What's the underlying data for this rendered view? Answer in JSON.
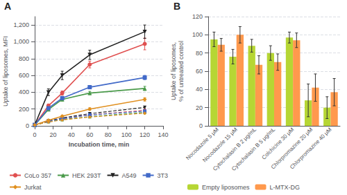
{
  "chart_data": [
    {
      "type": "line",
      "annotations": [
        "A"
      ],
      "x": [
        0,
        15,
        30,
        60,
        120
      ],
      "series": [
        {
          "name": "CoLo 357",
          "color": "#e05050",
          "marker": "circle",
          "line_style": "solid",
          "values": [
            10,
            240,
            390,
            730,
            975
          ],
          "errors": [
            5,
            20,
            25,
            40,
            70
          ]
        },
        {
          "name": "HEK 293T",
          "color": "#4a9a4a",
          "marker": "triangle-up",
          "line_style": "solid",
          "values": [
            10,
            195,
            315,
            390,
            445
          ],
          "errors": [
            5,
            15,
            20,
            20,
            25
          ]
        },
        {
          "name": "A549",
          "color": "#222222",
          "marker": "triangle-down",
          "line_style": "solid",
          "values": [
            10,
            400,
            600,
            845,
            1120
          ],
          "errors": [
            5,
            40,
            50,
            55,
            80
          ]
        },
        {
          "name": "3T3",
          "color": "#4169c8",
          "marker": "square",
          "line_style": "solid",
          "values": [
            10,
            210,
            330,
            460,
            575
          ],
          "errors": [
            5,
            15,
            20,
            20,
            25
          ]
        },
        {
          "name": "Jurkat",
          "color": "#e09020",
          "marker": "diamond",
          "line_style": "solid",
          "values": [
            10,
            65,
            115,
            200,
            315
          ],
          "errors": [
            5,
            10,
            10,
            15,
            20
          ]
        },
        {
          "name": "CoLo 357",
          "color": "#e05050",
          "marker": "circle",
          "line_style": "dashed",
          "values": [
            10,
            55,
            85,
            130,
            185
          ],
          "errors": [
            3,
            8,
            10,
            12,
            15
          ]
        },
        {
          "name": "HEK 293T",
          "color": "#4a9a4a",
          "marker": "triangle-up",
          "line_style": "dashed",
          "values": [
            10,
            50,
            75,
            110,
            160
          ],
          "errors": [
            3,
            7,
            8,
            10,
            12
          ]
        },
        {
          "name": "A549",
          "color": "#222222",
          "marker": "triangle-down",
          "line_style": "dashed",
          "values": [
            10,
            60,
            95,
            145,
            220
          ],
          "errors": [
            3,
            8,
            10,
            12,
            15
          ]
        },
        {
          "name": "3T3",
          "color": "#4169c8",
          "marker": "square",
          "line_style": "dashed",
          "values": [
            10,
            55,
            85,
            130,
            175
          ],
          "errors": [
            3,
            7,
            8,
            10,
            12
          ]
        },
        {
          "name": "Jurkat",
          "color": "#e09020",
          "marker": "diamond",
          "line_style": "dashed",
          "values": [
            10,
            45,
            70,
            105,
            150
          ],
          "errors": [
            3,
            6,
            7,
            9,
            11
          ]
        }
      ],
      "xlabel": "Incubation time, min",
      "ylabel": "Uptake of liposomes, MFI",
      "xlim": [
        0,
        140
      ],
      "xticks": [
        0,
        20,
        40,
        60,
        80,
        100,
        120,
        140
      ],
      "ylim": [
        0,
        1300
      ],
      "yticks": [
        0,
        200,
        400,
        600,
        800,
        {
          "value": 1000,
          "label": "1,000"
        },
        {
          "value": 1200,
          "label": "1,200"
        }
      ],
      "grid": true,
      "legend": "bottom"
    },
    {
      "type": "bar",
      "annotations": [
        "B"
      ],
      "categories": [
        "Nocodazole 5 μM",
        "Nocodazole 15 μM",
        "Cytochalasin B 2 μg/mL",
        "Cytochalasin B 5 μg/mL",
        "Colchicine 30 μM",
        "Chlorpromazine 20 μM",
        "Chlorpromazine 40 μM"
      ],
      "series": [
        {
          "name": "Empty liposomes",
          "values": [
            95,
            76,
            88,
            80,
            97,
            28,
            20
          ],
          "errors": [
            8,
            8,
            7,
            8,
            6,
            18,
            12
          ]
        },
        {
          "name": "L-MTX-DG",
          "values": [
            89,
            100,
            67,
            70,
            94,
            42,
            37
          ],
          "errors": [
            7,
            9,
            10,
            9,
            8,
            15,
            15
          ]
        }
      ],
      "ylabel": "Uptake of liposomes,\n% of untreated control",
      "ylim": [
        0,
        120
      ],
      "yticks": [
        0,
        20,
        40,
        60,
        80,
        100,
        120
      ],
      "grid": true,
      "legend": "bottom"
    }
  ]
}
